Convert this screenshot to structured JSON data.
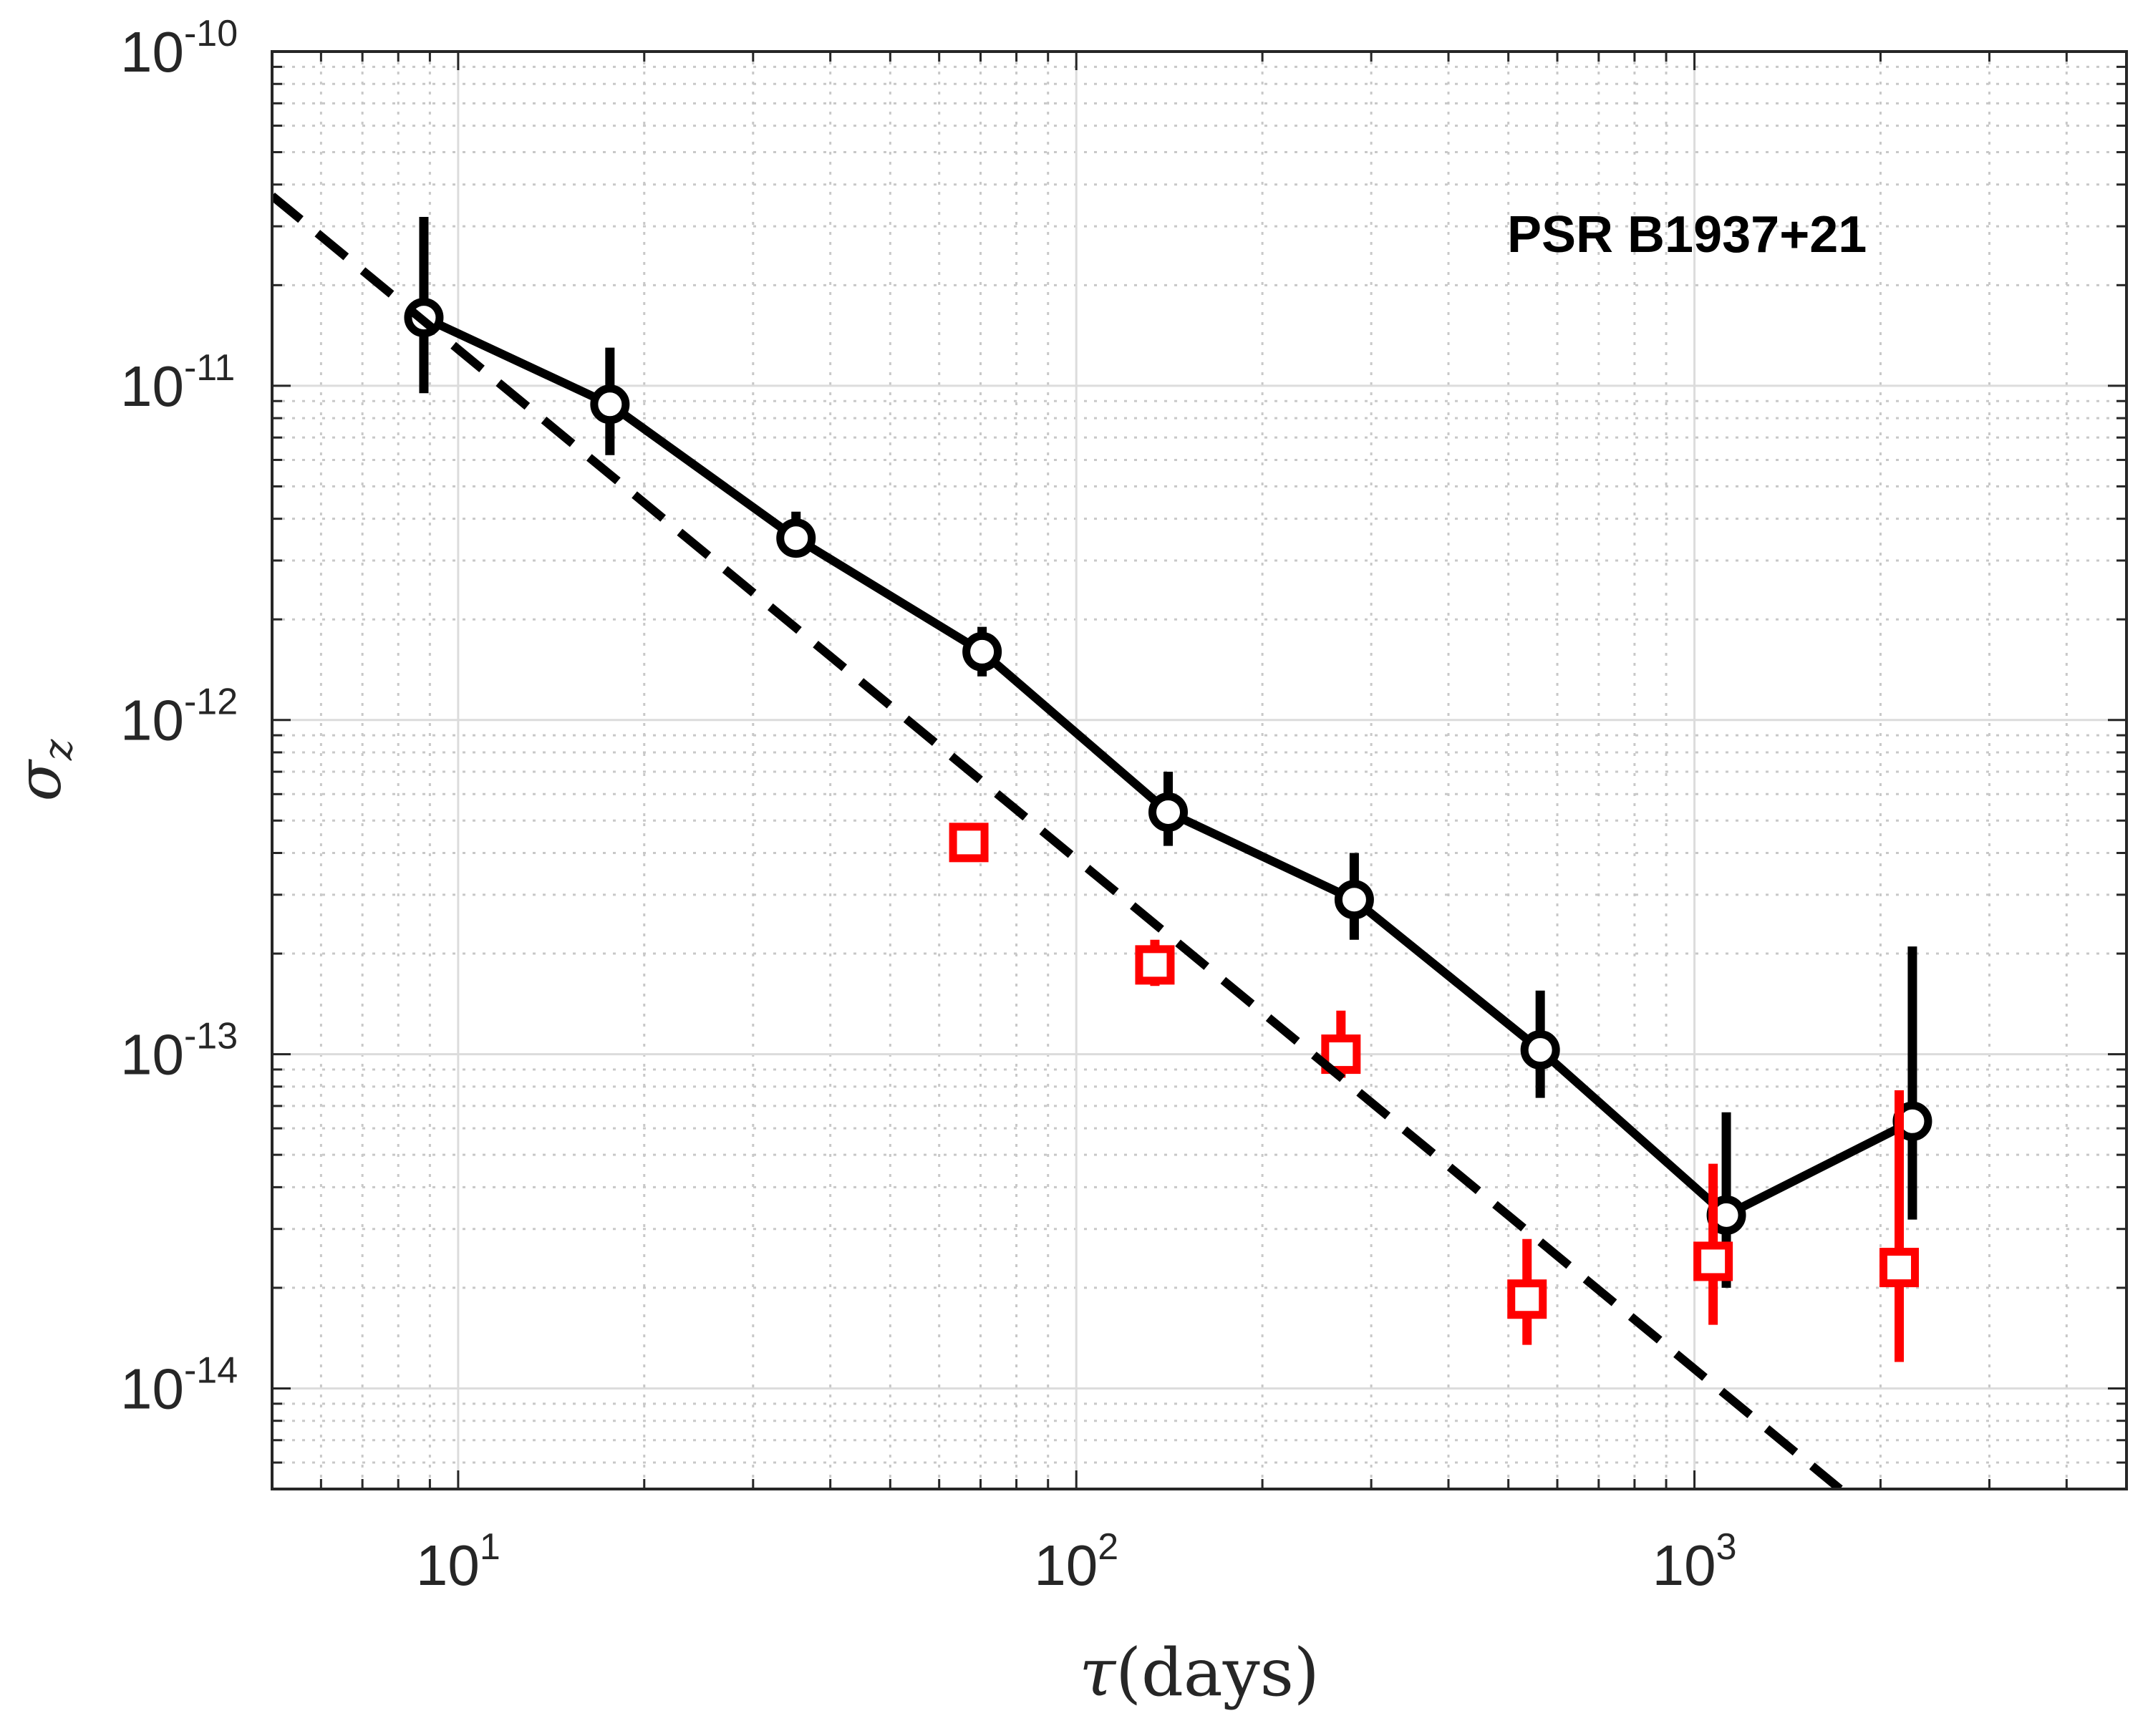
{
  "chart_data": {
    "type": "scatter",
    "title": "",
    "annotation": "PSR B1937+21",
    "xlabel": {
      "symbol": "τ",
      "text": "(days)"
    },
    "ylabel": {
      "symbol": "σ",
      "subscript": "z"
    },
    "x_scale": "log",
    "y_scale": "log",
    "xlim": [
      5,
      5000
    ],
    "ylim": [
      5e-15,
      1e-10
    ],
    "grid": true,
    "x_ticks": [
      {
        "value": 10,
        "base": "10",
        "exp": "1"
      },
      {
        "value": 100,
        "base": "10",
        "exp": "2"
      },
      {
        "value": 1000,
        "base": "10",
        "exp": "3"
      }
    ],
    "y_ticks": [
      {
        "value": 1e-14,
        "base": "10",
        "exp": "-14"
      },
      {
        "value": 1e-13,
        "base": "10",
        "exp": "-13"
      },
      {
        "value": 1e-12,
        "base": "10",
        "exp": "-12"
      },
      {
        "value": 1e-11,
        "base": "10",
        "exp": "-11"
      },
      {
        "value": 1e-10,
        "base": "10",
        "exp": "-10"
      }
    ],
    "series": [
      {
        "name": "black-circles",
        "color": "#000000",
        "marker": "circle",
        "connected": true,
        "x": [
          8.8,
          17.6,
          35.2,
          70.4,
          140.8,
          281.6,
          563,
          1126,
          2252
        ],
        "y": [
          1.6e-11,
          8.8e-12,
          3.5e-12,
          1.6e-12,
          5.3e-13,
          2.9e-13,
          1.03e-13,
          3.3e-14,
          6.3e-14
        ],
        "y_low": [
          9.5e-12,
          6.2e-12,
          3.1e-12,
          1.35e-12,
          4.2e-13,
          2.2e-13,
          7.4e-14,
          2e-14,
          3.2e-14
        ],
        "y_high": [
          3.2e-11,
          1.3e-11,
          4.2e-12,
          1.9e-12,
          7e-13,
          4e-13,
          1.55e-13,
          6.7e-14,
          2.1e-13
        ]
      },
      {
        "name": "red-squares",
        "color": "#ff0000",
        "marker": "square",
        "connected": false,
        "x": [
          67,
          134,
          268,
          536,
          1072,
          2144
        ],
        "y": [
          4.3e-13,
          1.85e-13,
          1e-13,
          1.85e-14,
          2.4e-14,
          2.3e-14
        ],
        "y_low": [
          4e-13,
          1.6e-13,
          8.5e-14,
          1.35e-14,
          1.55e-14,
          1.2e-14
        ],
        "y_high": [
          4.7e-13,
          2.2e-13,
          1.35e-13,
          2.8e-14,
          4.7e-14,
          7.8e-14
        ]
      },
      {
        "name": "power-law-fit",
        "color": "#000000",
        "style": "dashed",
        "x": [
          5,
          1720
        ],
        "y": [
          3.7e-11,
          5e-15
        ]
      }
    ]
  }
}
